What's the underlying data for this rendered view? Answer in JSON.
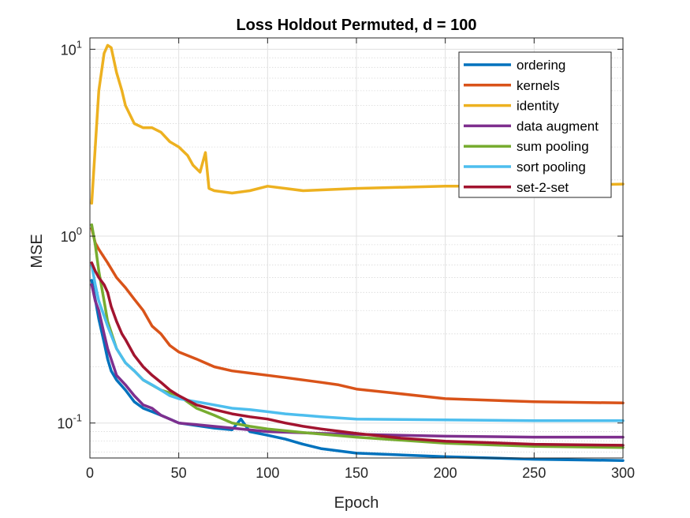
{
  "chart_data": {
    "type": "line",
    "title": "Loss Holdout Permuted, d = 100",
    "xlabel": "Epoch",
    "ylabel": "MSE",
    "xlim": [
      0,
      300
    ],
    "ylim": [
      0.065,
      11.5
    ],
    "yscale": "log",
    "grid": true,
    "legend_position": "top-right",
    "x_ticks": [
      0,
      50,
      100,
      150,
      200,
      250,
      300
    ],
    "x_tick_labels": [
      "0",
      "50",
      "100",
      "150",
      "200",
      "250",
      "300"
    ],
    "y_ticks": [
      0.1,
      1,
      10
    ],
    "y_tick_labels": [
      {
        "base": "10",
        "exp": "-1"
      },
      {
        "base": "10",
        "exp": "0"
      },
      {
        "base": "10",
        "exp": "1"
      }
    ],
    "series": [
      {
        "name": "ordering",
        "color": "#0072BD",
        "points": [
          [
            1,
            0.58
          ],
          [
            3,
            0.46
          ],
          [
            5,
            0.36
          ],
          [
            8,
            0.27
          ],
          [
            10,
            0.22
          ],
          [
            12,
            0.19
          ],
          [
            15,
            0.17
          ],
          [
            20,
            0.15
          ],
          [
            25,
            0.13
          ],
          [
            30,
            0.12
          ],
          [
            35,
            0.115
          ],
          [
            40,
            0.11
          ],
          [
            45,
            0.105
          ],
          [
            50,
            0.1
          ],
          [
            60,
            0.097
          ],
          [
            70,
            0.094
          ],
          [
            80,
            0.092
          ],
          [
            85,
            0.105
          ],
          [
            90,
            0.09
          ],
          [
            100,
            0.086
          ],
          [
            110,
            0.082
          ],
          [
            120,
            0.077
          ],
          [
            130,
            0.073
          ],
          [
            150,
            0.069
          ],
          [
            200,
            0.066
          ],
          [
            250,
            0.064
          ],
          [
            300,
            0.063
          ]
        ]
      },
      {
        "name": "kernels",
        "color": "#D95319",
        "points": [
          [
            1,
            1.1
          ],
          [
            3,
            0.92
          ],
          [
            5,
            0.85
          ],
          [
            10,
            0.72
          ],
          [
            15,
            0.6
          ],
          [
            20,
            0.53
          ],
          [
            25,
            0.46
          ],
          [
            30,
            0.4
          ],
          [
            35,
            0.33
          ],
          [
            40,
            0.3
          ],
          [
            45,
            0.26
          ],
          [
            50,
            0.24
          ],
          [
            60,
            0.22
          ],
          [
            70,
            0.2
          ],
          [
            80,
            0.19
          ],
          [
            90,
            0.185
          ],
          [
            100,
            0.18
          ],
          [
            110,
            0.175
          ],
          [
            120,
            0.17
          ],
          [
            130,
            0.165
          ],
          [
            140,
            0.16
          ],
          [
            150,
            0.152
          ],
          [
            170,
            0.145
          ],
          [
            200,
            0.135
          ],
          [
            250,
            0.13
          ],
          [
            300,
            0.128
          ]
        ]
      },
      {
        "name": "identity",
        "color": "#EDB120",
        "points": [
          [
            1,
            1.5
          ],
          [
            3,
            3.0
          ],
          [
            5,
            6.0
          ],
          [
            8,
            9.5
          ],
          [
            10,
            10.5
          ],
          [
            12,
            10.2
          ],
          [
            15,
            7.5
          ],
          [
            18,
            6.0
          ],
          [
            20,
            5.0
          ],
          [
            25,
            4.0
          ],
          [
            30,
            3.8
          ],
          [
            35,
            3.8
          ],
          [
            40,
            3.6
          ],
          [
            45,
            3.2
          ],
          [
            50,
            3.0
          ],
          [
            55,
            2.7
          ],
          [
            58,
            2.4
          ],
          [
            62,
            2.2
          ],
          [
            65,
            2.8
          ],
          [
            67,
            1.8
          ],
          [
            70,
            1.75
          ],
          [
            80,
            1.7
          ],
          [
            90,
            1.75
          ],
          [
            100,
            1.85
          ],
          [
            110,
            1.8
          ],
          [
            120,
            1.75
          ],
          [
            150,
            1.8
          ],
          [
            200,
            1.85
          ],
          [
            250,
            1.85
          ],
          [
            300,
            1.9
          ]
        ]
      },
      {
        "name": "data augment",
        "color": "#7E2F8E",
        "points": [
          [
            1,
            0.55
          ],
          [
            3,
            0.45
          ],
          [
            5,
            0.4
          ],
          [
            8,
            0.3
          ],
          [
            10,
            0.25
          ],
          [
            15,
            0.18
          ],
          [
            20,
            0.16
          ],
          [
            25,
            0.14
          ],
          [
            30,
            0.125
          ],
          [
            35,
            0.12
          ],
          [
            40,
            0.11
          ],
          [
            50,
            0.1
          ],
          [
            60,
            0.098
          ],
          [
            80,
            0.094
          ],
          [
            100,
            0.09
          ],
          [
            130,
            0.088
          ],
          [
            150,
            0.087
          ],
          [
            200,
            0.085
          ],
          [
            250,
            0.084
          ],
          [
            300,
            0.084
          ]
        ]
      },
      {
        "name": "sum pooling",
        "color": "#77AC30",
        "points": [
          [
            1,
            1.15
          ],
          [
            3,
            0.9
          ],
          [
            5,
            0.65
          ],
          [
            8,
            0.45
          ],
          [
            10,
            0.35
          ],
          [
            15,
            0.25
          ],
          [
            20,
            0.21
          ],
          [
            25,
            0.19
          ],
          [
            30,
            0.17
          ],
          [
            40,
            0.15
          ],
          [
            50,
            0.14
          ],
          [
            60,
            0.12
          ],
          [
            70,
            0.11
          ],
          [
            80,
            0.1
          ],
          [
            90,
            0.096
          ],
          [
            100,
            0.093
          ],
          [
            120,
            0.089
          ],
          [
            150,
            0.084
          ],
          [
            200,
            0.078
          ],
          [
            250,
            0.075
          ],
          [
            300,
            0.074
          ]
        ]
      },
      {
        "name": "sort pooling",
        "color": "#4DBEEE",
        "points": [
          [
            1,
            0.7
          ],
          [
            3,
            0.55
          ],
          [
            5,
            0.45
          ],
          [
            10,
            0.33
          ],
          [
            15,
            0.25
          ],
          [
            20,
            0.21
          ],
          [
            25,
            0.19
          ],
          [
            30,
            0.17
          ],
          [
            35,
            0.16
          ],
          [
            40,
            0.15
          ],
          [
            45,
            0.14
          ],
          [
            50,
            0.135
          ],
          [
            60,
            0.13
          ],
          [
            70,
            0.125
          ],
          [
            80,
            0.12
          ],
          [
            90,
            0.118
          ],
          [
            100,
            0.115
          ],
          [
            110,
            0.112
          ],
          [
            120,
            0.11
          ],
          [
            130,
            0.108
          ],
          [
            150,
            0.105
          ],
          [
            200,
            0.104
          ],
          [
            250,
            0.103
          ],
          [
            300,
            0.103
          ]
        ]
      },
      {
        "name": "set-2-set",
        "color": "#A2142F",
        "points": [
          [
            1,
            0.72
          ],
          [
            3,
            0.65
          ],
          [
            5,
            0.6
          ],
          [
            8,
            0.55
          ],
          [
            10,
            0.5
          ],
          [
            12,
            0.42
          ],
          [
            15,
            0.35
          ],
          [
            18,
            0.3
          ],
          [
            20,
            0.28
          ],
          [
            25,
            0.23
          ],
          [
            30,
            0.2
          ],
          [
            35,
            0.18
          ],
          [
            40,
            0.165
          ],
          [
            45,
            0.15
          ],
          [
            50,
            0.14
          ],
          [
            60,
            0.125
          ],
          [
            70,
            0.118
          ],
          [
            80,
            0.112
          ],
          [
            90,
            0.108
          ],
          [
            100,
            0.105
          ],
          [
            110,
            0.1
          ],
          [
            120,
            0.096
          ],
          [
            130,
            0.093
          ],
          [
            150,
            0.088
          ],
          [
            175,
            0.083
          ],
          [
            200,
            0.08
          ],
          [
            250,
            0.077
          ],
          [
            300,
            0.076
          ]
        ]
      }
    ]
  }
}
